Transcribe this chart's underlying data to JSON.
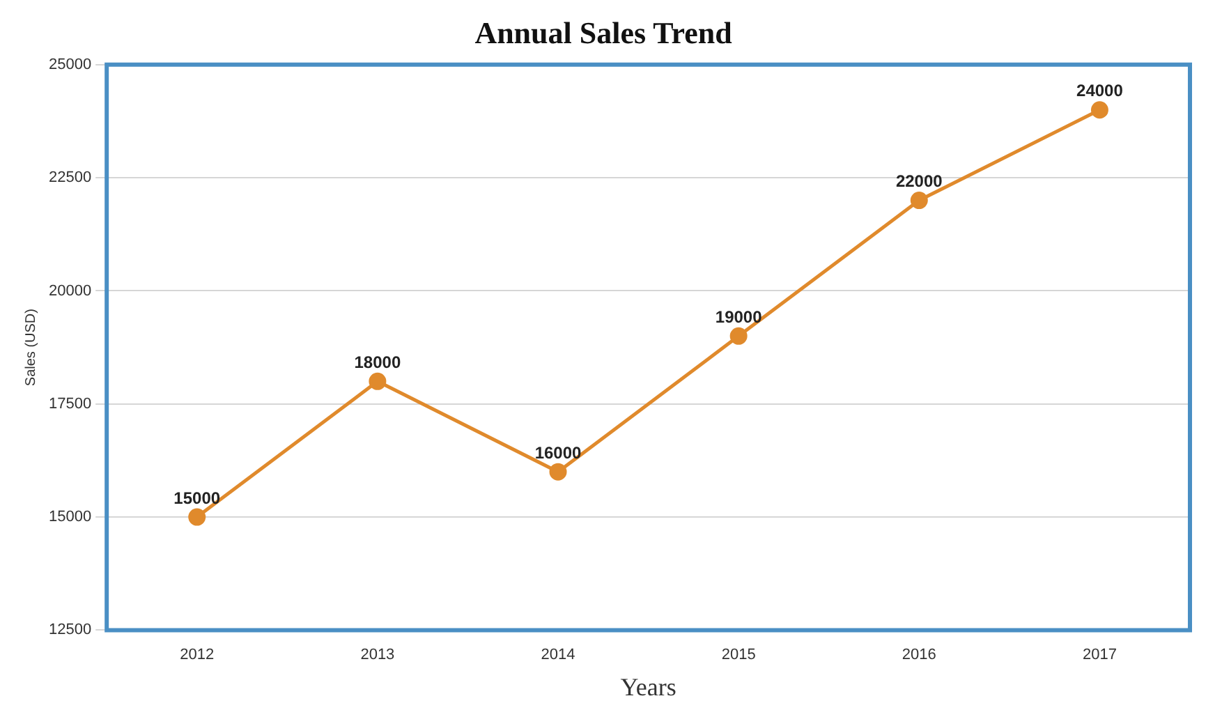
{
  "chart_data": {
    "type": "line",
    "title": "Annual Sales Trend",
    "xlabel": "Years",
    "ylabel": "Sales (USD)",
    "categories": [
      "2012",
      "2013",
      "2014",
      "2015",
      "2016",
      "2017"
    ],
    "series": [
      {
        "color": "#e08a2c",
        "values": [
          15000,
          18000,
          16000,
          19000,
          22000,
          24000
        ]
      }
    ],
    "ylim": [
      12500,
      25000
    ],
    "yticks": [
      12500,
      15000,
      17500,
      20000,
      22500,
      25000
    ],
    "grid": "y",
    "legend": false,
    "marker": "circle",
    "line_style": "solid",
    "data_labels": true
  }
}
